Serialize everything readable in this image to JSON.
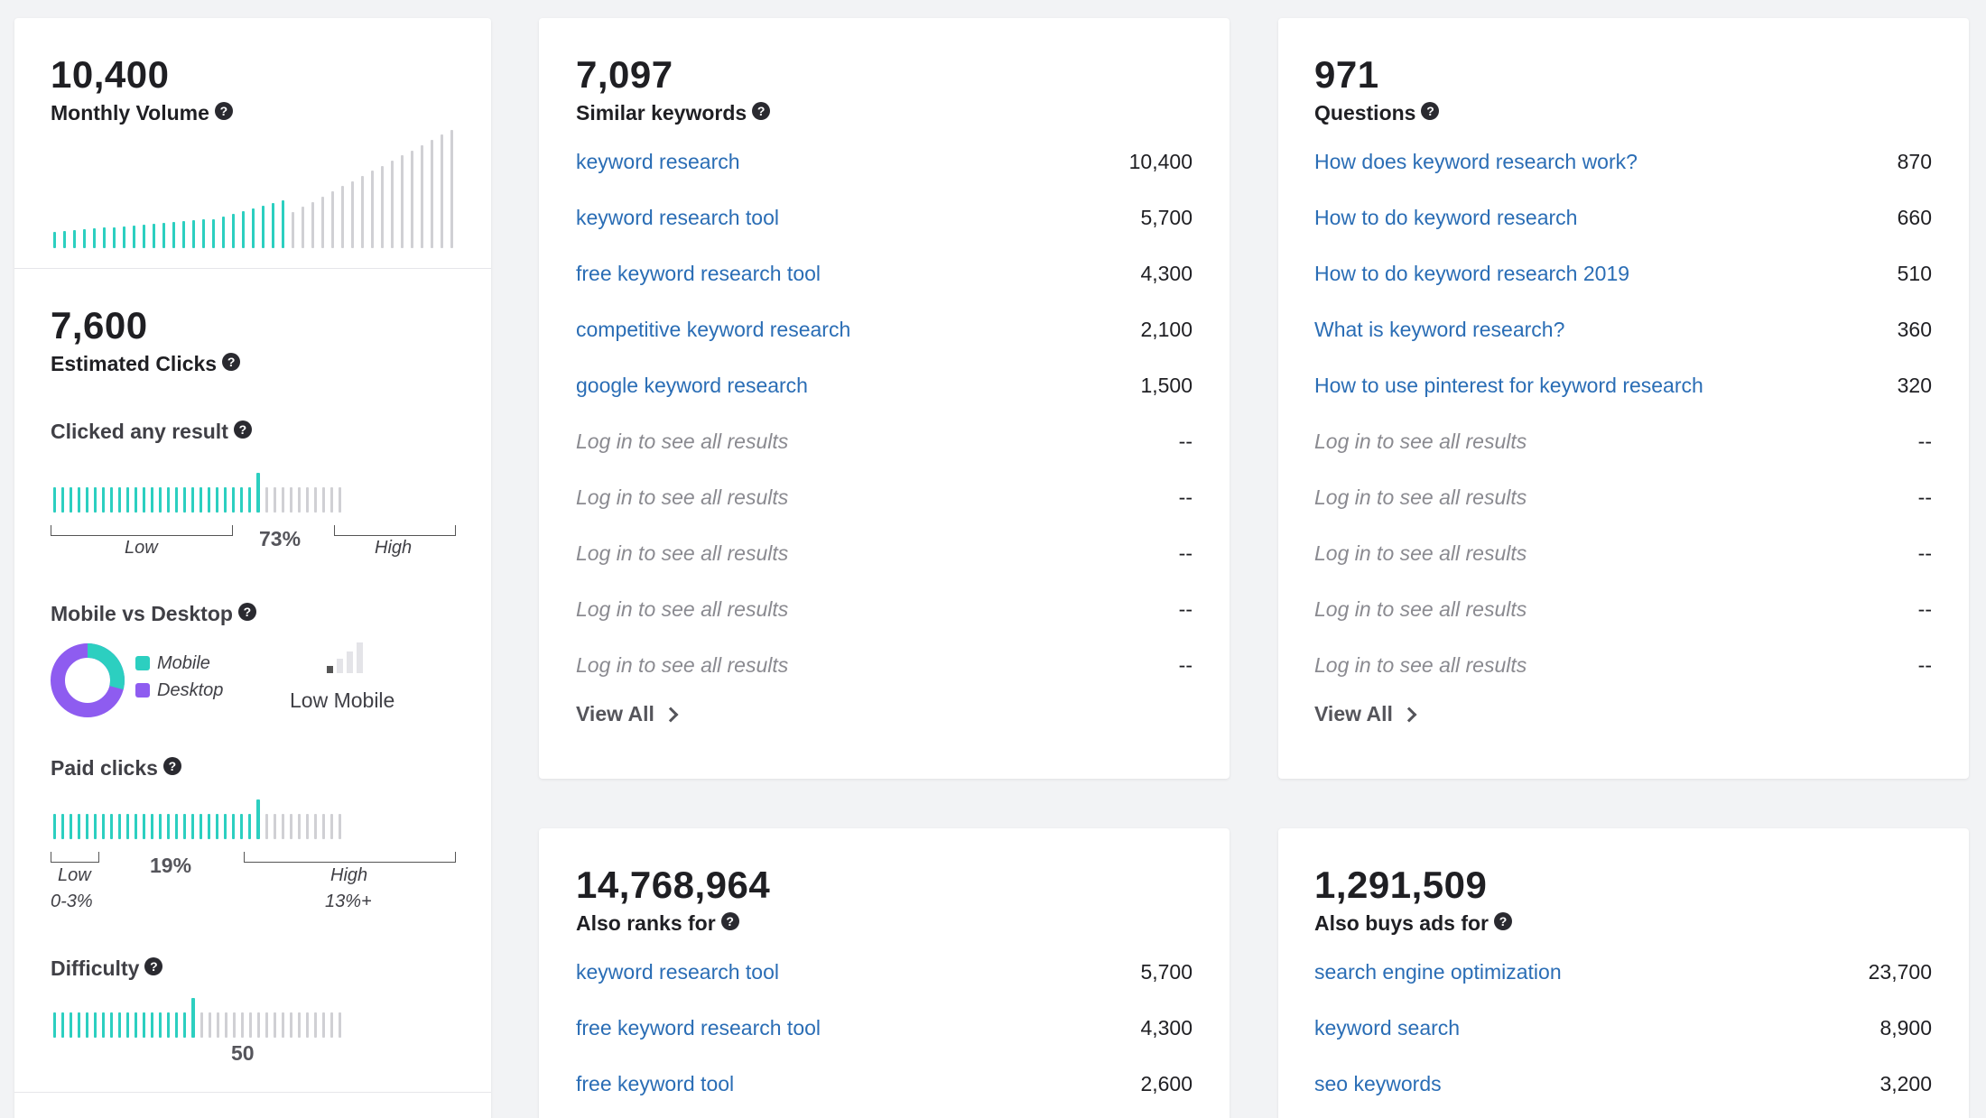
{
  "volume": {
    "value": "10,400",
    "label": "Monthly Volume"
  },
  "clicks": {
    "value": "7,600",
    "label": "Estimated Clicks"
  },
  "clicked_any": {
    "label": "Clicked any result",
    "low": "Low",
    "high": "High",
    "pct": "73%",
    "fraction": 0.73
  },
  "mobile": {
    "label": "Mobile vs Desktop",
    "legend_mobile": "Mobile",
    "legend_desktop": "Desktop",
    "rating": "Low Mobile",
    "mobile_color": "#2ccfc0",
    "desktop_color": "#8e5cf0"
  },
  "paid": {
    "label": "Paid clicks",
    "low": "Low",
    "low_range": "0-3%",
    "high": "High",
    "high_range": "13%+",
    "pct": "19%",
    "fraction": 0.19
  },
  "difficulty": {
    "label": "Difficulty",
    "value": "50"
  },
  "similar": {
    "value": "7,097",
    "label": "Similar keywords",
    "rows": [
      {
        "kw": "keyword research",
        "vol": "10,400"
      },
      {
        "kw": "keyword research tool",
        "vol": "5,700"
      },
      {
        "kw": "free keyword research tool",
        "vol": "4,300"
      },
      {
        "kw": "competitive keyword research",
        "vol": "2,100"
      },
      {
        "kw": "google keyword research",
        "vol": "1,500"
      },
      {
        "kw": "Log in to see all results",
        "vol": "--"
      },
      {
        "kw": "Log in to see all results",
        "vol": "--"
      },
      {
        "kw": "Log in to see all results",
        "vol": "--"
      },
      {
        "kw": "Log in to see all results",
        "vol": "--"
      },
      {
        "kw": "Log in to see all results",
        "vol": "--"
      }
    ],
    "view_all": "View All"
  },
  "questions": {
    "value": "971",
    "label": "Questions",
    "rows": [
      {
        "kw": "How does keyword research work?",
        "vol": "870"
      },
      {
        "kw": "How to do keyword research",
        "vol": "660"
      },
      {
        "kw": "How to do keyword research 2019",
        "vol": "510"
      },
      {
        "kw": "What is keyword research?",
        "vol": "360"
      },
      {
        "kw": "How to use pinterest for keyword research",
        "vol": "320"
      },
      {
        "kw": "Log in to see all results",
        "vol": "--"
      },
      {
        "kw": "Log in to see all results",
        "vol": "--"
      },
      {
        "kw": "Log in to see all results",
        "vol": "--"
      },
      {
        "kw": "Log in to see all results",
        "vol": "--"
      },
      {
        "kw": "Log in to see all results",
        "vol": "--"
      }
    ],
    "view_all": "View All"
  },
  "also_ranks": {
    "value": "14,768,964",
    "label": "Also ranks for",
    "rows": [
      {
        "kw": "keyword research tool",
        "vol": "5,700"
      },
      {
        "kw": "free keyword research tool",
        "vol": "4,300"
      },
      {
        "kw": "free keyword tool",
        "vol": "2,600"
      }
    ]
  },
  "also_buys": {
    "value": "1,291,509",
    "label": "Also buys ads for",
    "rows": [
      {
        "kw": "search engine optimization",
        "vol": "23,700"
      },
      {
        "kw": "keyword search",
        "vol": "8,900"
      },
      {
        "kw": "seo keywords",
        "vol": "3,200"
      }
    ]
  },
  "colors": {
    "accent": "#2ccfc0",
    "inactive": "#d0d0d4",
    "link": "#2a6db5"
  },
  "icons": {
    "help": "question-circle-icon",
    "chevron": "chevron-right-icon",
    "signal": "signal-strength-icon"
  }
}
